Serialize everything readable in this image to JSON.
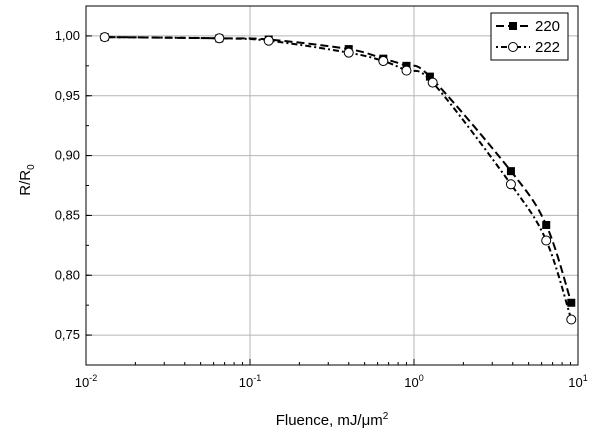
{
  "chart_data": {
    "type": "line",
    "xscale": "log",
    "xlim": [
      0.01,
      10
    ],
    "ylim": [
      0.725,
      1.025
    ],
    "grid": true,
    "legend_position": "top-right",
    "xlabel": {
      "text": "Fluence, mJ/μm",
      "sup": "2"
    },
    "ylabel": {
      "text": "R/R",
      "sub": "0"
    },
    "x_ticks": [
      {
        "value": 0.01,
        "base": "10",
        "exp": "-2"
      },
      {
        "value": 0.1,
        "base": "10",
        "exp": "-1"
      },
      {
        "value": 1,
        "base": "10",
        "exp": "0"
      },
      {
        "value": 10,
        "base": "10",
        "exp": "1"
      }
    ],
    "y_ticks": [
      {
        "value": 0.75,
        "label": "0,75"
      },
      {
        "value": 0.8,
        "label": "0,80"
      },
      {
        "value": 0.85,
        "label": "0,85"
      },
      {
        "value": 0.9,
        "label": "0,90"
      },
      {
        "value": 0.95,
        "label": "0,95"
      },
      {
        "value": 1.0,
        "label": "1,00"
      }
    ],
    "series": [
      {
        "name": "220",
        "marker": "filled-square",
        "line_style": "dash",
        "color": "#000000",
        "x": [
          0.013,
          0.065,
          0.13,
          0.4,
          0.65,
          0.9,
          1.25,
          3.9,
          6.4,
          9.1
        ],
        "y": [
          0.999,
          0.998,
          0.997,
          0.989,
          0.981,
          0.975,
          0.966,
          0.887,
          0.842,
          0.777
        ]
      },
      {
        "name": "222",
        "marker": "open-circle",
        "line_style": "dash-dot",
        "color": "#000000",
        "x": [
          0.013,
          0.065,
          0.13,
          0.4,
          0.65,
          0.9,
          1.3,
          3.9,
          6.4,
          9.1
        ],
        "y": [
          0.999,
          0.998,
          0.996,
          0.986,
          0.979,
          0.971,
          0.961,
          0.876,
          0.829,
          0.763
        ]
      }
    ]
  }
}
